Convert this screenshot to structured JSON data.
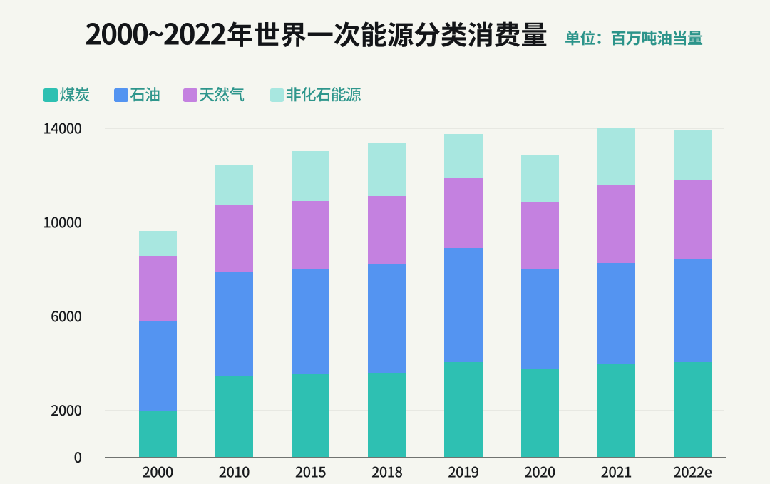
{
  "chart_data": {
    "type": "bar",
    "stacked": true,
    "title": "2000~2022年世界一次能源分类消费量",
    "unit_label": "单位：百万吨油当量",
    "categories": [
      "2000",
      "2010",
      "2015",
      "2018",
      "2019",
      "2020",
      "2021",
      "2022e"
    ],
    "series": [
      {
        "key": "coal",
        "name": "煤炭",
        "color": "#2ec0b2",
        "values": [
          1970,
          3480,
          3520,
          3610,
          4050,
          3760,
          3980,
          4050
        ]
      },
      {
        "key": "oil",
        "name": "石油",
        "color": "#5494f1",
        "values": [
          3820,
          4410,
          4500,
          4600,
          4860,
          4250,
          4290,
          4360
        ]
      },
      {
        "key": "gas",
        "name": "天然气",
        "color": "#c481e0",
        "values": [
          2780,
          2860,
          2890,
          2910,
          2960,
          2880,
          3330,
          3400
        ]
      },
      {
        "key": "non-fossil",
        "name": "非化石能源",
        "color": "#a8e7e0",
        "values": [
          1050,
          1690,
          2120,
          2250,
          1890,
          2000,
          2390,
          2130
        ]
      }
    ],
    "totals": [
      9620,
      12440,
      13030,
      13370,
      13760,
      12890,
      13990,
      13940
    ],
    "xlabel": "",
    "ylabel": "",
    "ylim": [
      0,
      14000
    ],
    "y_ticks": [
      0,
      2000,
      6000,
      10000,
      14000
    ],
    "grid": "horizontal",
    "legend_position": "top-left"
  },
  "colors": {
    "background": "#f5f6f0",
    "title_text": "#131518",
    "unit_text": "#2c948a",
    "legend_text": "#2e968c",
    "axis_text": "#17191c",
    "gridline": "#e7e8e2",
    "axis_line": "#707370"
  }
}
